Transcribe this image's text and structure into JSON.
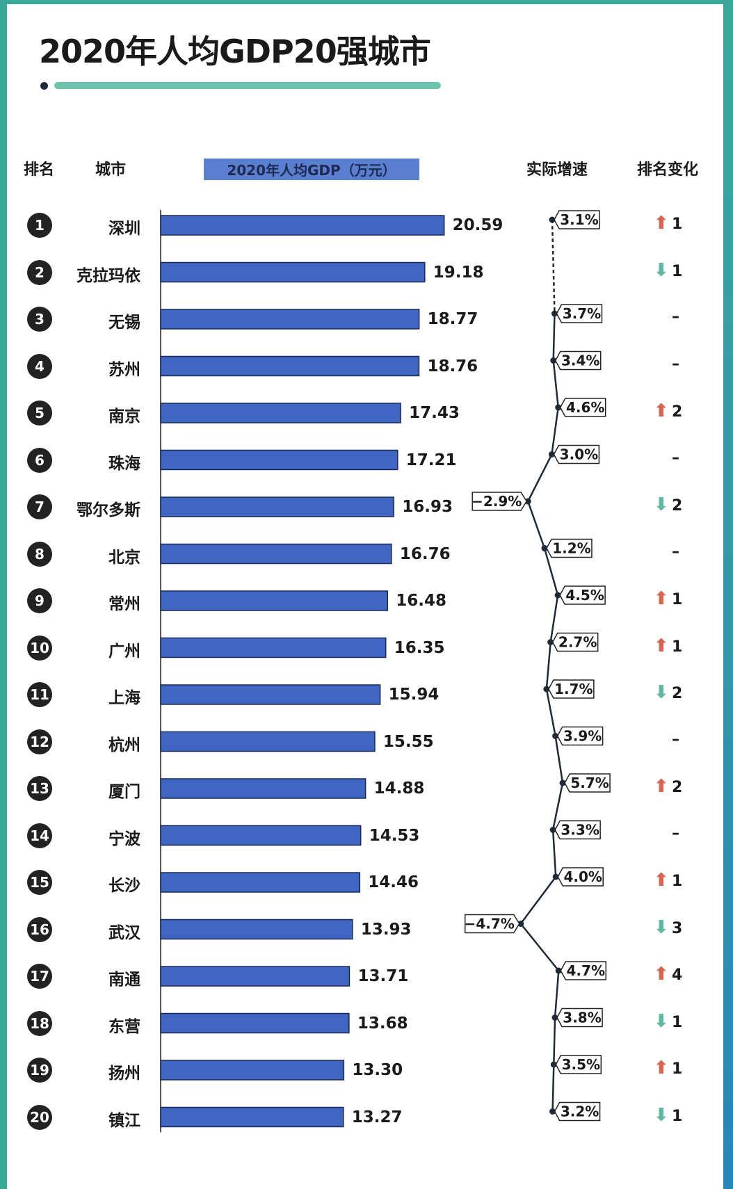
{
  "chart_data": {
    "type": "bar",
    "title": "2020年人均GDP20强城市",
    "columns": [
      "排名",
      "城市",
      "2020年人均GDP（万元）",
      "实际增速",
      "排名变化"
    ],
    "ranks": [
      1,
      2,
      3,
      4,
      5,
      6,
      7,
      8,
      9,
      10,
      11,
      12,
      13,
      14,
      15,
      16,
      17,
      18,
      19,
      20
    ],
    "categories": [
      "深圳",
      "克拉玛依",
      "无锡",
      "苏州",
      "南京",
      "珠海",
      "鄂尔多斯",
      "北京",
      "常州",
      "广州",
      "上海",
      "杭州",
      "厦门",
      "宁波",
      "长沙",
      "武汉",
      "南通",
      "东营",
      "扬州",
      "镇江"
    ],
    "values": [
      20.59,
      19.18,
      18.77,
      18.76,
      17.43,
      17.21,
      16.93,
      16.76,
      16.48,
      16.35,
      15.94,
      15.55,
      14.88,
      14.53,
      14.46,
      13.93,
      13.71,
      13.68,
      13.3,
      13.27
    ],
    "value_labels": [
      "20.59",
      "19.18",
      "18.77",
      "18.76",
      "17.43",
      "17.21",
      "16.93",
      "16.76",
      "16.48",
      "16.35",
      "15.94",
      "15.55",
      "14.88",
      "14.53",
      "14.46",
      "13.93",
      "13.71",
      "13.68",
      "13.30",
      "13.27"
    ],
    "growth": [
      3.1,
      null,
      3.7,
      3.4,
      4.6,
      3.0,
      -2.9,
      1.2,
      4.5,
      2.7,
      1.7,
      3.9,
      5.7,
      3.3,
      4.0,
      -4.7,
      4.7,
      3.8,
      3.5,
      3.2
    ],
    "growth_labels": [
      "3.1%",
      "",
      "3.7%",
      "3.4%",
      "4.6%",
      "3.0%",
      "−2.9%",
      "1.2%",
      "4.5%",
      "2.7%",
      "1.7%",
      "3.9%",
      "5.7%",
      "3.3%",
      "4.0%",
      "−4.7%",
      "4.7%",
      "3.8%",
      "3.5%",
      "3.2%"
    ],
    "rank_change": [
      {
        "dir": "up",
        "n": "1"
      },
      {
        "dir": "down",
        "n": "1"
      },
      {
        "dir": "none",
        "n": "–"
      },
      {
        "dir": "none",
        "n": "–"
      },
      {
        "dir": "up",
        "n": "2"
      },
      {
        "dir": "none",
        "n": "–"
      },
      {
        "dir": "down",
        "n": "2"
      },
      {
        "dir": "none",
        "n": "–"
      },
      {
        "dir": "up",
        "n": "1"
      },
      {
        "dir": "up",
        "n": "1"
      },
      {
        "dir": "down",
        "n": "2"
      },
      {
        "dir": "none",
        "n": "–"
      },
      {
        "dir": "up",
        "n": "2"
      },
      {
        "dir": "none",
        "n": "–"
      },
      {
        "dir": "up",
        "n": "1"
      },
      {
        "dir": "down",
        "n": "3"
      },
      {
        "dir": "up",
        "n": "4"
      },
      {
        "dir": "down",
        "n": "1"
      },
      {
        "dir": "up",
        "n": "1"
      },
      {
        "dir": "down",
        "n": "1"
      }
    ],
    "colors": {
      "bar": "#3f66c2",
      "up": "#d9644f",
      "down": "#5fb8a2",
      "line": "#1e2a3a",
      "accent": "#6cc3ab"
    }
  }
}
